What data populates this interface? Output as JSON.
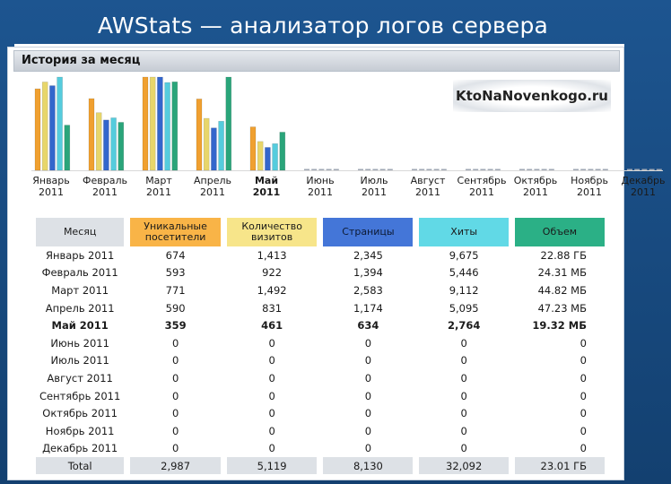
{
  "slide": {
    "title": "AWStats — анализатор логов сервера"
  },
  "panel": {
    "title": "История за месяц",
    "watermark": "KtoNaNovenkogo.ru"
  },
  "chart_data": {
    "type": "bar",
    "categories": [
      [
        "Январь",
        "2011"
      ],
      [
        "Февраль",
        "2011"
      ],
      [
        "Март",
        "2011"
      ],
      [
        "Апрель",
        "2011"
      ],
      [
        "Май",
        "2011"
      ],
      [
        "Июнь",
        "2011"
      ],
      [
        "Июль",
        "2011"
      ],
      [
        "Август",
        "2011"
      ],
      [
        "Сентябрь",
        "2011"
      ],
      [
        "Октябрь",
        "2011"
      ],
      [
        "Ноябрь",
        "2011"
      ],
      [
        "Декабрь",
        "2011"
      ]
    ],
    "bold_category_index": 4,
    "series": [
      {
        "name": "Уникальные посетители",
        "color": "#f0a030",
        "values": [
          674,
          593,
          771,
          590,
          359,
          0,
          0,
          0,
          0,
          0,
          0,
          0
        ]
      },
      {
        "name": "Количество визитов",
        "color": "#e8d66a",
        "values": [
          1413,
          922,
          1492,
          831,
          461,
          0,
          0,
          0,
          0,
          0,
          0,
          0
        ]
      },
      {
        "name": "Страницы",
        "color": "#3366cc",
        "values": [
          2345,
          1394,
          2583,
          1174,
          634,
          0,
          0,
          0,
          0,
          0,
          0,
          0
        ]
      },
      {
        "name": "Хиты",
        "color": "#55ccdd",
        "values": [
          9675,
          5446,
          9112,
          5095,
          2764,
          0,
          0,
          0,
          0,
          0,
          0,
          0
        ]
      },
      {
        "name": "Объем",
        "color": "#2aa57a",
        "values": [
          22.88,
          24.31,
          44.82,
          47.23,
          19.32,
          0,
          0,
          0,
          0,
          0,
          0,
          0
        ]
      }
    ],
    "group_scale_note": "each group normalized to its own max, as AWStats does",
    "series_max": [
      771,
      1492,
      2583,
      9675,
      47.23
    ]
  },
  "table": {
    "headers": {
      "month": "Месяц",
      "uniq": "Уникальные посетители",
      "visits": "Количество визитов",
      "pages": "Страницы",
      "hits": "Хиты",
      "volume": "Объем"
    },
    "rows": [
      {
        "month": "Январь 2011",
        "uniq": "674",
        "visits": "1,413",
        "pages": "2,345",
        "hits": "9,675",
        "volume": "22.88 ГБ"
      },
      {
        "month": "Февраль 2011",
        "uniq": "593",
        "visits": "922",
        "pages": "1,394",
        "hits": "5,446",
        "volume": "24.31 МБ"
      },
      {
        "month": "Март 2011",
        "uniq": "771",
        "visits": "1,492",
        "pages": "2,583",
        "hits": "9,112",
        "volume": "44.82 МБ"
      },
      {
        "month": "Апрель 2011",
        "uniq": "590",
        "visits": "831",
        "pages": "1,174",
        "hits": "5,095",
        "volume": "47.23 МБ"
      },
      {
        "month": "Май 2011",
        "uniq": "359",
        "visits": "461",
        "pages": "634",
        "hits": "2,764",
        "volume": "19.32 МБ",
        "bold": true
      },
      {
        "month": "Июнь 2011",
        "uniq": "0",
        "visits": "0",
        "pages": "0",
        "hits": "0",
        "volume": "0"
      },
      {
        "month": "Июль 2011",
        "uniq": "0",
        "visits": "0",
        "pages": "0",
        "hits": "0",
        "volume": "0"
      },
      {
        "month": "Август 2011",
        "uniq": "0",
        "visits": "0",
        "pages": "0",
        "hits": "0",
        "volume": "0"
      },
      {
        "month": "Сентябрь 2011",
        "uniq": "0",
        "visits": "0",
        "pages": "0",
        "hits": "0",
        "volume": "0"
      },
      {
        "month": "Октябрь 2011",
        "uniq": "0",
        "visits": "0",
        "pages": "0",
        "hits": "0",
        "volume": "0"
      },
      {
        "month": "Ноябрь 2011",
        "uniq": "0",
        "visits": "0",
        "pages": "0",
        "hits": "0",
        "volume": "0"
      },
      {
        "month": "Декабрь 2011",
        "uniq": "0",
        "visits": "0",
        "pages": "0",
        "hits": "0",
        "volume": "0"
      }
    ],
    "total": {
      "month": "Total",
      "uniq": "2,987",
      "visits": "5,119",
      "pages": "8,130",
      "hits": "32,092",
      "volume": "23.01 ГБ"
    }
  }
}
